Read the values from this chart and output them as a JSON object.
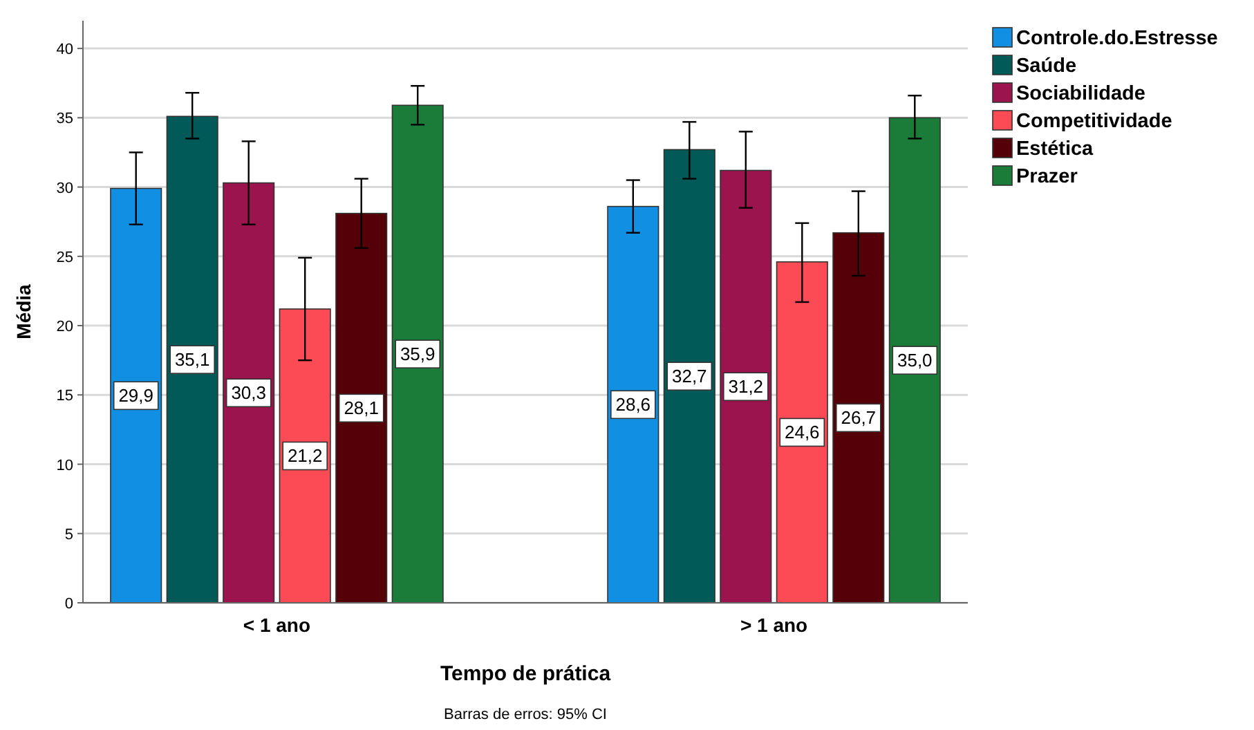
{
  "chart_data": {
    "type": "bar",
    "xlabel": "Tempo de prática",
    "ylabel": "Média",
    "categories": [
      "< 1 ano",
      "> 1 ano"
    ],
    "series": [
      {
        "name": "Controle.do.Estresse",
        "color": "#1190e3",
        "values": [
          29.9,
          28.6
        ],
        "errors": [
          [
            27.3,
            32.5
          ],
          [
            26.7,
            30.5
          ]
        ],
        "value_labels": [
          "29,9",
          "28,6"
        ]
      },
      {
        "name": "Saúde",
        "color": "#015a57",
        "values": [
          35.1,
          32.7
        ],
        "errors": [
          [
            33.5,
            36.8
          ],
          [
            30.6,
            34.7
          ]
        ],
        "value_labels": [
          "35,1",
          "32,7"
        ]
      },
      {
        "name": "Sociabilidade",
        "color": "#9b144d",
        "values": [
          30.3,
          31.2
        ],
        "errors": [
          [
            27.3,
            33.3
          ],
          [
            28.5,
            34.0
          ]
        ],
        "value_labels": [
          "30,3",
          "31,2"
        ]
      },
      {
        "name": "Competitividade",
        "color": "#fc4b55",
        "values": [
          21.2,
          24.6
        ],
        "errors": [
          [
            17.5,
            24.9
          ],
          [
            21.7,
            27.4
          ]
        ],
        "value_labels": [
          "21,2",
          "24,6"
        ]
      },
      {
        "name": "Estética",
        "color": "#550008",
        "values": [
          28.1,
          26.7
        ],
        "errors": [
          [
            25.6,
            30.6
          ],
          [
            23.6,
            29.7
          ]
        ],
        "value_labels": [
          "28,1",
          "26,7"
        ]
      },
      {
        "name": "Prazer",
        "color": "#1b7c39",
        "values": [
          35.9,
          35.0
        ],
        "errors": [
          [
            34.5,
            37.3
          ],
          [
            33.5,
            36.6
          ]
        ],
        "value_labels": [
          "35,9",
          "35,0"
        ]
      }
    ],
    "ylim": [
      0,
      42
    ],
    "yticks": [
      0,
      5,
      10,
      15,
      20,
      25,
      30,
      35,
      40
    ],
    "grid": "y",
    "legend": "top right",
    "annotations": [
      "Barras de erros: 95% CI"
    ]
  }
}
